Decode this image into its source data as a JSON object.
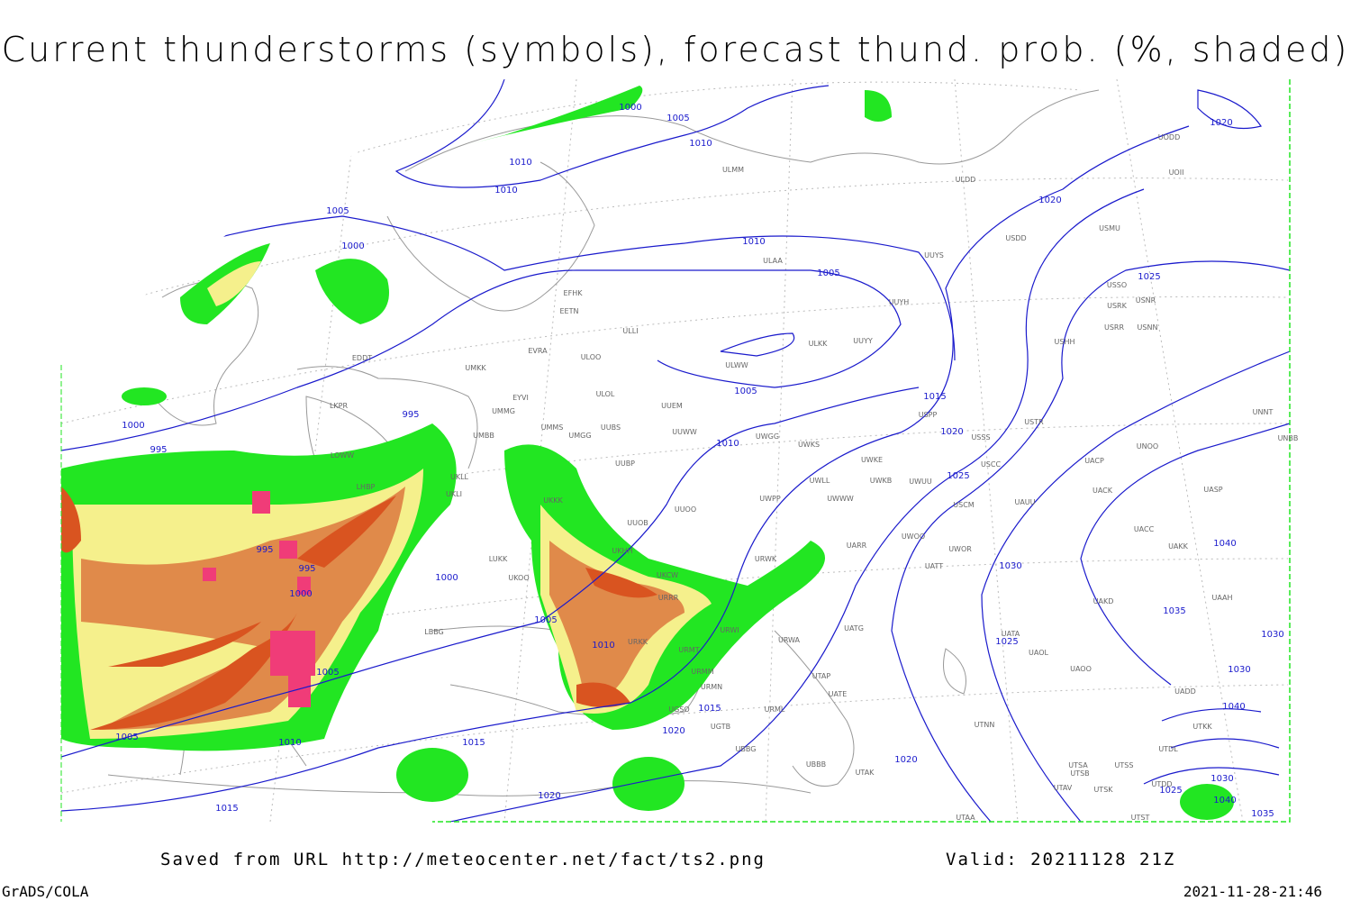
{
  "header": {
    "title": "Current thunderstorms (symbols), forecast thund. prob. (%, shaded)"
  },
  "footer": {
    "saved": "Saved from URL http://meteocenter.net/fact/ts2.png",
    "valid": "Valid: 20211128 21Z",
    "software": "GrADS/COLA",
    "timestamp": "2021-11-28-21:46"
  },
  "isobar_labels": [
    "1000",
    "1005",
    "1010",
    "1010",
    "1010",
    "1005",
    "1000",
    "1010",
    "1005",
    "1005",
    "1010",
    "1015",
    "1020",
    "1025",
    "1020",
    "1025",
    "1030",
    "1040",
    "1035",
    "1030",
    "1030",
    "1040",
    "1025",
    "1020",
    "1030",
    "1040",
    "1025",
    "1035",
    "1020",
    "995",
    "1000",
    "995",
    "995",
    "995",
    "1000",
    "1000",
    "1005",
    "1010",
    "1005",
    "1005",
    "1010",
    "1015",
    "1015",
    "1020",
    "1020",
    "1015"
  ],
  "stations": [
    "UODD",
    "UOII",
    "ULDD",
    "ULMM",
    "USDD",
    "USMU",
    "ULAA",
    "UUYS",
    "USSO",
    "USRK",
    "USNR",
    "USRR",
    "USNN",
    "UUYH",
    "USHH",
    "ULKK",
    "UUYY",
    "ULWW",
    "EFHK",
    "EETN",
    "ULLI",
    "EVRA",
    "ULOO",
    "EDDT",
    "UMKK",
    "EYVI",
    "ULOL",
    "UUEM",
    "LKPR",
    "UMMG",
    "USPP",
    "USTR",
    "UNNT",
    "UNBB",
    "UMMS",
    "UUBS",
    "UUWW",
    "UWGG",
    "USSS",
    "UMBB",
    "UMGG",
    "UWKS",
    "UNOO",
    "LOWW",
    "UWKE",
    "UKLL",
    "UUBP",
    "UACP",
    "USCC",
    "LHBP",
    "UKLI",
    "UWLL",
    "UWKB",
    "UWUU",
    "UKKK",
    "UWPP",
    "UWWW",
    "UACK",
    "UASP",
    "USCM",
    "UAUU",
    "UUOO",
    "UUOB",
    "UACC",
    "UWOO",
    "UAKK",
    "UARR",
    "LUKK",
    "UKHH",
    "UWOR",
    "URWK",
    "UATT",
    "UKOO",
    "UKCW",
    "URRR",
    "UAKD",
    "UAAH",
    "LBBG",
    "URWI",
    "UATG",
    "UATA",
    "URKK",
    "URMT",
    "URWA",
    "UAOL",
    "URMM",
    "UTAP",
    "UAOO",
    "URMN",
    "UATE",
    "UADD",
    "URML",
    "UGSO",
    "UGTB",
    "UTNN",
    "UTKK",
    "UBBG",
    "UTDL",
    "UBBB",
    "UTAK",
    "UTSA",
    "UTSS",
    "UTSB",
    "UTAV",
    "UTSK",
    "UTST",
    "UTAA",
    "UTDD"
  ]
}
